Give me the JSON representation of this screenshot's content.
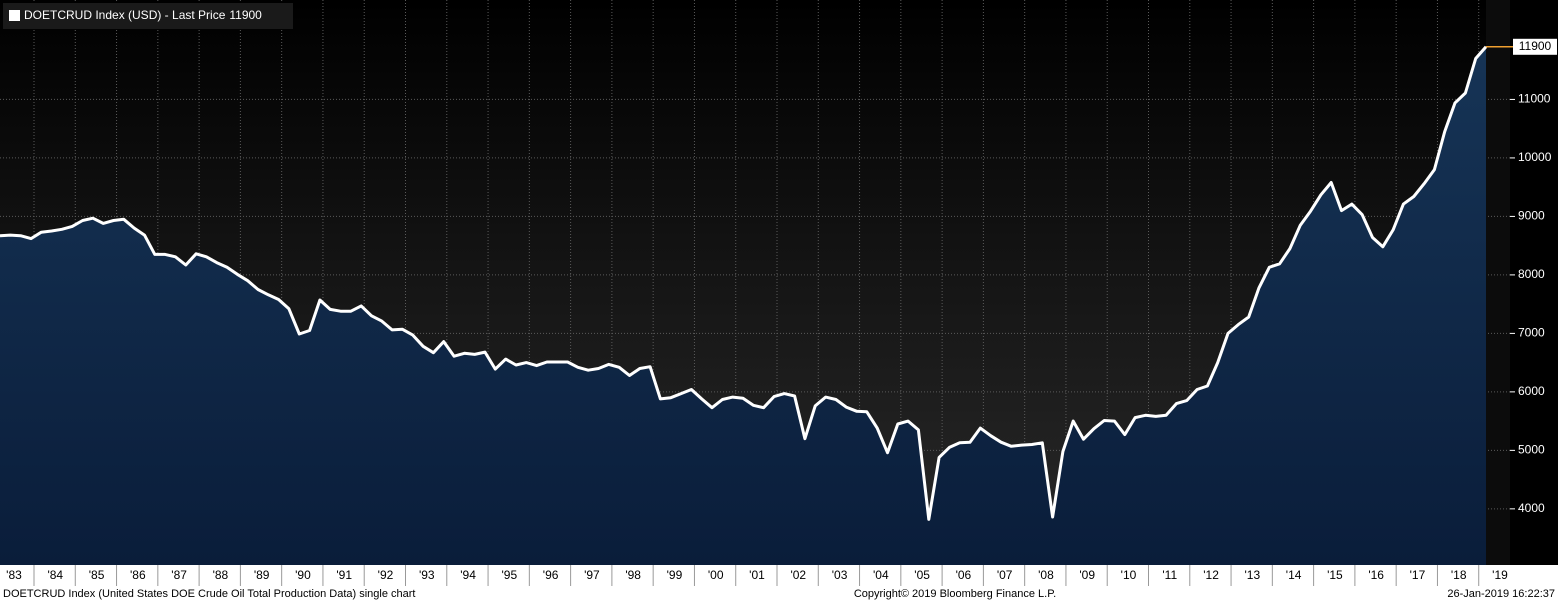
{
  "chart_data": {
    "type": "area",
    "footnote": "DOETCRUD Index (United States DOE Crude Oil Total Production Data) single chart",
    "copyright": "Copyright© 2019 Bloomberg Finance L.P.",
    "timestamp": "26-Jan-2019 16:22:37",
    "categories": [
      "'83",
      null,
      null,
      null,
      "'84",
      null,
      null,
      null,
      "'85",
      null,
      null,
      null,
      "'86",
      null,
      null,
      null,
      "'87",
      null,
      null,
      null,
      "'88",
      null,
      null,
      null,
      "'89",
      null,
      null,
      null,
      "'90",
      null,
      null,
      null,
      "'91",
      null,
      null,
      null,
      "'92",
      null,
      null,
      null,
      "'93",
      null,
      null,
      null,
      "'94",
      null,
      null,
      null,
      "'95",
      null,
      null,
      null,
      "'96",
      null,
      null,
      null,
      "'97",
      null,
      null,
      null,
      "'98",
      null,
      null,
      null,
      "'99",
      null,
      null,
      null,
      "'00",
      null,
      null,
      null,
      "'01",
      null,
      null,
      null,
      "'02",
      null,
      null,
      null,
      "'03",
      null,
      null,
      null,
      "'04",
      null,
      null,
      null,
      "'05",
      null,
      null,
      null,
      "'06",
      null,
      null,
      null,
      "'07",
      null,
      null,
      null,
      "'08",
      null,
      null,
      null,
      "'09",
      null,
      null,
      null,
      "'10",
      null,
      null,
      null,
      "'11",
      null,
      null,
      null,
      "'12",
      null,
      null,
      null,
      "'13",
      null,
      null,
      null,
      "'14",
      null,
      null,
      null,
      "'15",
      null,
      null,
      null,
      "'16",
      null,
      null,
      null,
      "'17",
      null,
      null,
      null,
      "'18",
      null,
      null,
      null,
      "'19"
    ],
    "series": [
      {
        "name": "DOETCRUD Index (USD) - Last Price",
        "color": "#ffffff",
        "fill": "#0f2a4d",
        "values": [
          8670,
          8680,
          8670,
          8620,
          8730,
          8750,
          8780,
          8830,
          8930,
          8970,
          8880,
          8930,
          8950,
          8800,
          8680,
          8350,
          8350,
          8310,
          8170,
          8360,
          8310,
          8210,
          8130,
          8010,
          7900,
          7750,
          7660,
          7580,
          7420,
          6990,
          7050,
          7570,
          7410,
          7380,
          7380,
          7470,
          7300,
          7210,
          7060,
          7070,
          6970,
          6780,
          6670,
          6860,
          6610,
          6660,
          6640,
          6680,
          6390,
          6560,
          6460,
          6500,
          6450,
          6510,
          6510,
          6510,
          6420,
          6370,
          6400,
          6470,
          6420,
          6280,
          6400,
          6430,
          5880,
          5900,
          5970,
          6040,
          5880,
          5730,
          5870,
          5910,
          5890,
          5770,
          5730,
          5920,
          5970,
          5930,
          5200,
          5760,
          5910,
          5870,
          5740,
          5670,
          5660,
          5380,
          4960,
          5450,
          5500,
          5350,
          3820,
          4880,
          5050,
          5130,
          5140,
          5380,
          5250,
          5140,
          5070,
          5090,
          5100,
          5130,
          3860,
          4980,
          5500,
          5190,
          5370,
          5510,
          5500,
          5270,
          5560,
          5600,
          5580,
          5600,
          5800,
          5850,
          6040,
          6100,
          6500,
          7000,
          7150,
          7280,
          7780,
          8130,
          8190,
          8450,
          8850,
          9090,
          9370,
          9580,
          9100,
          9210,
          9030,
          8640,
          8480,
          8770,
          9210,
          9340,
          9560,
          9800,
          10450,
          10940,
          11110,
          11700,
          11900
        ]
      }
    ],
    "ylim": [
      3040,
      12700
    ],
    "yticks": [
      4000,
      5000,
      6000,
      7000,
      8000,
      9000,
      10000,
      11000
    ],
    "grid": true
  }
}
